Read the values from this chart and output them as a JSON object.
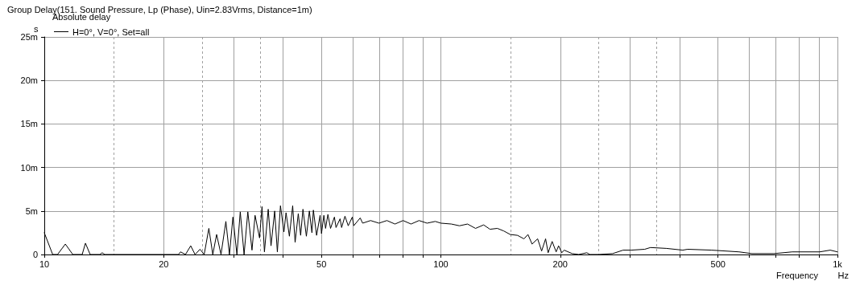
{
  "chart_data": {
    "type": "line",
    "title": "Group Delay(151. Sound Pressure, Lp (Phase), Uin=2.83Vrms, Distance=1m)",
    "xlabel": "Frequency",
    "ylabel": "s",
    "legend_title": "Absolute delay",
    "annotations": [
      "Hz"
    ],
    "log": "x",
    "grid": true,
    "legend": "top left",
    "marker": "none",
    "line_style": "solid",
    "xlim": [
      10,
      1000
    ],
    "xticks": [
      10,
      {
        "value": 15,
        "label": null
      },
      20,
      {
        "value": 25,
        "label": null
      },
      {
        "value": 30,
        "label": null
      },
      {
        "value": 35,
        "label": null
      },
      {
        "value": 40,
        "label": null
      },
      50,
      {
        "value": 60,
        "label": null
      },
      {
        "value": 70,
        "label": null
      },
      {
        "value": 80,
        "label": null
      },
      {
        "value": 90,
        "label": null
      },
      100,
      {
        "value": 150,
        "label": null
      },
      200,
      {
        "value": 250,
        "label": null
      },
      {
        "value": 300,
        "label": null
      },
      {
        "value": 350,
        "label": null
      },
      {
        "value": 400,
        "label": null
      },
      500,
      {
        "value": 600,
        "label": null
      },
      {
        "value": 700,
        "label": null
      },
      {
        "value": 800,
        "label": null
      },
      {
        "value": 900,
        "label": null
      },
      {
        "value": 1000,
        "label": "1k"
      }
    ],
    "ylim": [
      0,
      25
    ],
    "yticks": [
      0,
      {
        "value": 5,
        "label": "5m"
      },
      {
        "value": 10,
        "label": "10m"
      },
      {
        "value": 15,
        "label": "15m"
      },
      {
        "value": 20,
        "label": "20m"
      },
      {
        "value": 25,
        "label": "25m"
      }
    ],
    "series": [
      {
        "name": "H=0°, V=0°, Set=all",
        "color": "#000000",
        "x": [
          10,
          10.5,
          10.8,
          11.3,
          11.8,
          12.46,
          12.7,
          13.05,
          13.8,
          14.0,
          14.2,
          21.8,
          22.06,
          22.7,
          23.4,
          24.0,
          24.7,
          25.3,
          26.0,
          26.6,
          27.2,
          27.9,
          28.7,
          29.3,
          29.9,
          30.6,
          31.2,
          31.9,
          32.6,
          33.4,
          34.0,
          34.9,
          35.4,
          35.9,
          36.7,
          37.3,
          38.1,
          38.7,
          39.4,
          40.2,
          40.7,
          41.5,
          42.3,
          42.9,
          43.7,
          44.3,
          44.9,
          45.8,
          46.6,
          47.3,
          47.7,
          48.6,
          49.6,
          50.0,
          50.7,
          51.2,
          51.9,
          52.7,
          53.9,
          54.4,
          55.7,
          56.2,
          57.3,
          58.4,
          59.8,
          60.3,
          62.6,
          63.5,
          66.5,
          69.8,
          73.1,
          76.6,
          80.3,
          84.1,
          88.1,
          92.3,
          96.8,
          100,
          106.3,
          111.4,
          116.7,
          122.3,
          128.2,
          133.0,
          138.8,
          144.1,
          149.6,
          156.0,
          162.0,
          165.8,
          169.8,
          175.4,
          179.5,
          183.7,
          186.4,
          190.8,
          195.3,
          198.1,
          201.8,
          204.6,
          214.4,
          222.6,
          233.3,
          237.7,
          250,
          271,
          288,
          301.8,
          326.6,
          337.7,
          370.7,
          407.4,
          418.9,
          481.9,
          565,
          609,
          691,
          769,
          902,
          959,
          1000
        ],
        "values": [
          2.5,
          0,
          0,
          1.2,
          0,
          0,
          1.3,
          0,
          0,
          0.2,
          0,
          0,
          0.3,
          0,
          1,
          0,
          0.6,
          0,
          3,
          0,
          2.3,
          0,
          3.8,
          0,
          4.3,
          0,
          4.9,
          0,
          4.9,
          0.5,
          4.5,
          1.9,
          5.5,
          0.3,
          5.2,
          1,
          5,
          0.3,
          5.6,
          2.6,
          4.8,
          2.1,
          5.6,
          1.4,
          4.7,
          2.2,
          5.2,
          2.1,
          5,
          2.5,
          5.1,
          2.2,
          4.5,
          2.4,
          4.5,
          3,
          4.6,
          3,
          4.3,
          3.1,
          4.1,
          3.1,
          4.4,
          3.3,
          4.3,
          3.3,
          4.2,
          3.6,
          3.9,
          3.6,
          3.9,
          3.5,
          3.9,
          3.5,
          3.9,
          3.6,
          3.8,
          3.6,
          3.5,
          3.3,
          3.5,
          3,
          3.4,
          2.9,
          3,
          2.7,
          2.3,
          2.2,
          1.8,
          2.3,
          1.2,
          1.8,
          0.4,
          1.8,
          0.2,
          1.5,
          0.3,
          1,
          0.2,
          0.5,
          0.1,
          0,
          0.2,
          0,
          0,
          0.1,
          0.5,
          0.5,
          0.6,
          0.8,
          0.7,
          0.5,
          0.6,
          0.5,
          0.3,
          0.1,
          0.1,
          0.3,
          0.3,
          0.5,
          0.3
        ]
      }
    ]
  }
}
